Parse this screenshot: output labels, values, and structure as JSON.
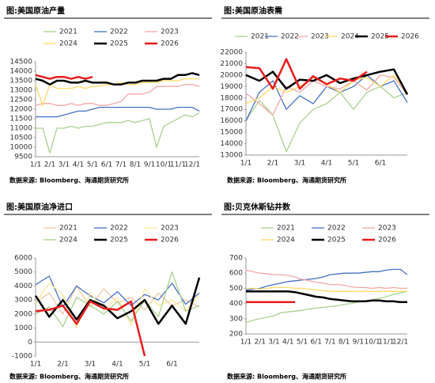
{
  "chart_data": [
    {
      "type": "line",
      "title": "图:美国原油产量",
      "source": "数据来源: Bloomberg、海通期货研究所",
      "categories": [
        "1/1",
        null,
        "2/1",
        null,
        "3/1",
        null,
        "4/1",
        null,
        "5/1",
        null,
        "6/1",
        null,
        "7/1",
        null,
        "8/1",
        null,
        "9/1",
        null,
        "10/1",
        null,
        "11/1",
        null,
        "12/1",
        null
      ],
      "ylim": [
        9500,
        14500
      ],
      "yticks": [
        9500,
        10000,
        10500,
        11000,
        11500,
        12000,
        12500,
        13000,
        13500,
        14000,
        14500
      ],
      "series": [
        {
          "name": "2021",
          "color": "#a9d18e",
          "values": [
            11000,
            11000,
            9700,
            11000,
            11000,
            11100,
            11000,
            11100,
            11100,
            11200,
            11300,
            11300,
            11300,
            11400,
            11300,
            11400,
            11500,
            10000,
            11100,
            11300,
            11500,
            11700,
            11600,
            11800
          ]
        },
        {
          "name": "2022",
          "color": "#4472c4",
          "values": [
            11600,
            11600,
            11600,
            11600,
            11700,
            11800,
            11900,
            11900,
            12000,
            12100,
            12100,
            12100,
            12100,
            12100,
            12100,
            12100,
            12100,
            12000,
            12000,
            12000,
            12100,
            12100,
            12100,
            11900
          ]
        },
        {
          "name": "2023",
          "color": "#f4a6a6",
          "values": [
            12200,
            12300,
            12300,
            12200,
            12200,
            12300,
            12200,
            12300,
            12300,
            12200,
            12200,
            12300,
            12400,
            12800,
            12800,
            12800,
            12900,
            13200,
            13200,
            13200,
            13200,
            13300,
            13300,
            13200
          ]
        },
        {
          "name": "2024",
          "color": "#ffd966",
          "values": [
            13300,
            12200,
            13300,
            13100,
            13100,
            13100,
            13200,
            13100,
            13200,
            13200,
            13300,
            13300,
            13400,
            13300,
            13300,
            13400,
            13400,
            13400,
            13500,
            13500,
            13500,
            13600,
            13600,
            13600
          ]
        },
        {
          "name": "2025",
          "color": "#000000",
          "values": [
            13600,
            13500,
            13300,
            13500,
            13500,
            13400,
            13400,
            13500,
            13400,
            13400,
            13400,
            13300,
            13300,
            13400,
            13400,
            13500,
            13500,
            13500,
            13600,
            13600,
            13800,
            13800,
            13900,
            13800
          ]
        },
        {
          "name": "2026",
          "color": "#e81c1c",
          "values": [
            13800,
            13700,
            13600,
            13700,
            13700,
            13600,
            13700,
            13600,
            13700,
            null,
            null,
            null,
            null,
            null,
            null,
            null,
            null,
            null,
            null,
            null,
            null,
            null,
            null,
            null
          ]
        }
      ]
    },
    {
      "type": "line",
      "title": "图:美国原油表需",
      "source": "数据来源: Bloomberg、海通期货研究所",
      "categories": [
        "1/1",
        null,
        "2/1",
        null,
        "3/1",
        null,
        "4/1",
        null,
        "5/1",
        null,
        "6/1",
        null,
        null
      ],
      "ylim": [
        13000,
        22000
      ],
      "yticks": [
        13000,
        14000,
        15000,
        16000,
        17000,
        18000,
        19000,
        20000,
        21000,
        22000
      ],
      "series": [
        {
          "name": "2021",
          "color": "#a9d18e",
          "values": [
            16000,
            17800,
            16500,
            13300,
            15800,
            17000,
            17500,
            18500,
            17000,
            18500,
            19000,
            18000,
            18500
          ]
        },
        {
          "name": "2022",
          "color": "#4472c4",
          "values": [
            16000,
            18500,
            19500,
            17000,
            18200,
            17500,
            19000,
            18500,
            19000,
            20000,
            19000,
            19500,
            17600
          ]
        },
        {
          "name": "2023",
          "color": "#f4a6a6",
          "values": [
            18400,
            17500,
            16500,
            19000,
            18500,
            19500,
            19000,
            18800,
            19500,
            18700,
            20000,
            19800,
            18300
          ]
        },
        {
          "name": "2024",
          "color": "#ffd966",
          "values": [
            17500,
            18000,
            19000,
            18500,
            19000,
            19800,
            19200,
            18500,
            19500,
            19800,
            19000,
            20000,
            18500
          ]
        },
        {
          "name": "2025",
          "color": "#000000",
          "values": [
            20000,
            19500,
            20300,
            18800,
            19600,
            19500,
            20000,
            19300,
            19700,
            20000,
            20300,
            20500,
            18300
          ]
        },
        {
          "name": "2026",
          "color": "#e81c1c",
          "values": [
            20700,
            20600,
            18800,
            21400,
            18800,
            19900,
            19200,
            19700,
            19500,
            20300,
            null,
            null,
            null
          ]
        }
      ]
    },
    {
      "type": "line",
      "title": "图:美国原油净进口",
      "source": "数据来源: Bloomberg、海通期货研究所",
      "categories": [
        "1/1",
        null,
        "2/1",
        null,
        "3/1",
        null,
        "4/1",
        null,
        "5/1",
        null,
        "6/1",
        null,
        null
      ],
      "ylim": [
        -1000,
        6000
      ],
      "yticks": [
        -1000,
        0,
        1000,
        2000,
        3000,
        4000,
        5000,
        6000
      ],
      "series": [
        {
          "name": "2021",
          "color": "#f4c7a1",
          "values": [
            2800,
            3500,
            2000,
            4000,
            2500,
            3800,
            2800,
            3200,
            2300,
            3500,
            2600,
            3000,
            2500
          ]
        },
        {
          "name": "2022",
          "color": "#4472c4",
          "values": [
            4100,
            4700,
            2500,
            4000,
            3300,
            2800,
            3600,
            2600,
            3400,
            3000,
            4200,
            2700,
            3500
          ]
        },
        {
          "name": "2023",
          "color": "#ffe699",
          "values": [
            2800,
            4200,
            3400,
            1000,
            3500,
            2300,
            3200,
            1200,
            3800,
            2600,
            3000,
            2200,
            3400
          ]
        },
        {
          "name": "2024",
          "color": "#a9d18e",
          "values": [
            2000,
            2500,
            1100,
            3200,
            2600,
            2000,
            2900,
            1500,
            3000,
            1800,
            5000,
            2200,
            2600
          ]
        },
        {
          "name": "2025",
          "color": "#000000",
          "values": [
            3300,
            1800,
            3000,
            1600,
            3000,
            2600,
            1700,
            2200,
            3000,
            1300,
            2600,
            1300,
            4600
          ]
        },
        {
          "name": "2026",
          "color": "#e81c1c",
          "values": [
            2200,
            2300,
            2600,
            1300,
            2900,
            2400,
            2300,
            2900,
            -1000,
            null,
            null,
            null,
            null
          ]
        }
      ]
    },
    {
      "type": "line",
      "title": "图:贝克休斯钻井数",
      "source": "数据来源: Bloomberg、海通期货研究所",
      "categories": [
        "1/1",
        null,
        "2/1",
        null,
        "3/1",
        null,
        "4/1",
        null,
        "5/1",
        null,
        "6/1",
        null,
        "7/1",
        null,
        "8/1",
        null,
        "9/1",
        null,
        "10/1",
        null,
        "11/1",
        null,
        "12/1",
        null
      ],
      "ylim": [
        200,
        700
      ],
      "yticks": [
        200,
        300,
        400,
        500,
        600,
        700
      ],
      "series": [
        {
          "name": "2021",
          "color": "#a9d18e",
          "values": [
            275,
            290,
            300,
            310,
            320,
            340,
            345,
            350,
            355,
            365,
            370,
            375,
            380,
            385,
            395,
            400,
            410,
            415,
            425,
            435,
            445,
            460,
            470,
            480
          ]
        },
        {
          "name": "2022",
          "color": "#4472c4",
          "values": [
            490,
            495,
            500,
            515,
            525,
            535,
            545,
            550,
            555,
            560,
            565,
            575,
            590,
            595,
            600,
            600,
            600,
            605,
            610,
            610,
            620,
            625,
            625,
            590
          ]
        },
        {
          "name": "2023",
          "color": "#f4a6a6",
          "values": [
            620,
            610,
            600,
            595,
            590,
            590,
            585,
            575,
            560,
            550,
            540,
            535,
            525,
            525,
            520,
            510,
            505,
            505,
            500,
            505,
            500,
            505,
            500,
            500
          ]
        },
        {
          "name": "2024",
          "color": "#ffd966",
          "values": [
            500,
            500,
            495,
            500,
            505,
            505,
            505,
            500,
            500,
            495,
            490,
            485,
            480,
            480,
            480,
            480,
            480,
            480,
            480,
            480,
            480,
            480,
            480,
            480
          ]
        },
        {
          "name": "2025",
          "color": "#000000",
          "values": [
            480,
            480,
            480,
            480,
            480,
            480,
            480,
            475,
            465,
            455,
            445,
            440,
            430,
            425,
            420,
            415,
            415,
            415,
            420,
            420,
            415,
            415,
            410,
            410
          ]
        },
        {
          "name": "2026",
          "color": "#e81c1c",
          "values": [
            410,
            410,
            410,
            410,
            410,
            410,
            410,
            410,
            null,
            null,
            null,
            null,
            null,
            null,
            null,
            null,
            null,
            null,
            null,
            null,
            null,
            null,
            null,
            null
          ]
        }
      ]
    }
  ]
}
